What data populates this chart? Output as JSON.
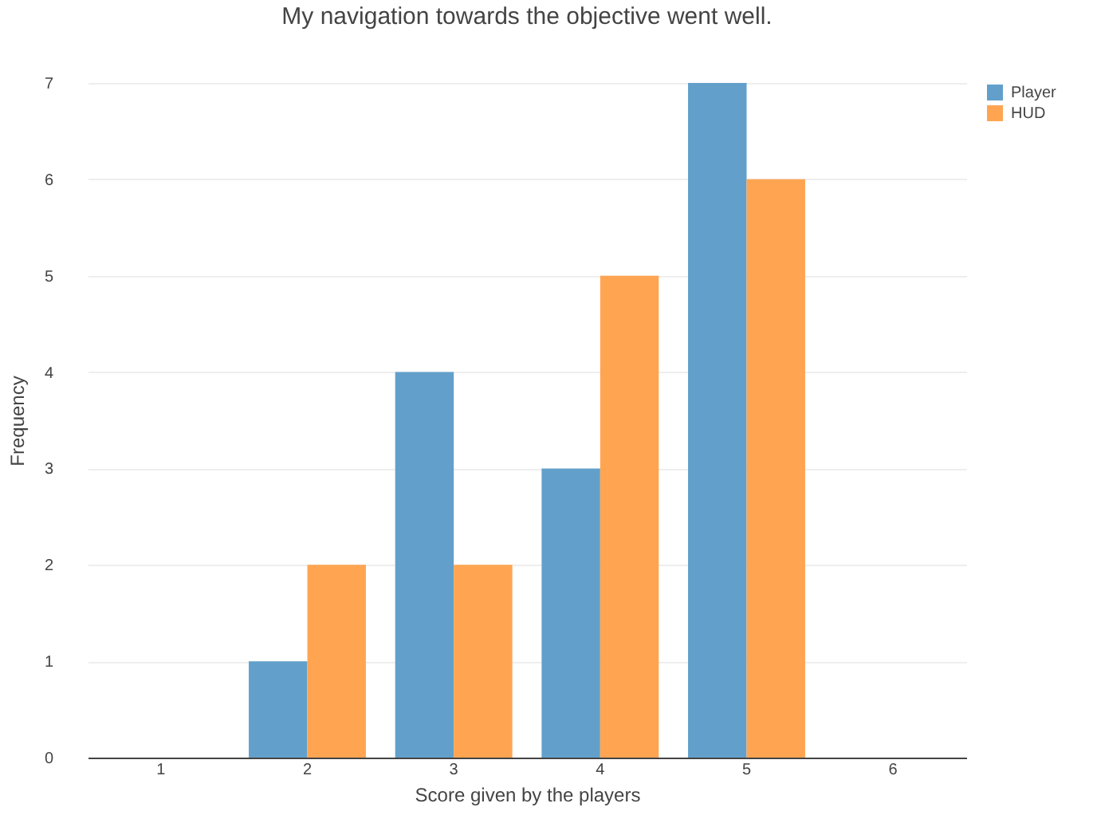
{
  "chart_data": {
    "type": "bar",
    "title": "My navigation towards the objective went well.",
    "xlabel": "Score given by the players",
    "ylabel": "Frequency",
    "categories": [
      "1",
      "2",
      "3",
      "4",
      "5",
      "6"
    ],
    "series": [
      {
        "name": "Player",
        "color": "#62a0cb",
        "values": [
          0,
          1,
          4,
          3,
          7,
          0
        ]
      },
      {
        "name": "HUD",
        "color": "#ffa552",
        "values": [
          0,
          2,
          2,
          5,
          6,
          0
        ]
      }
    ],
    "ylim": [
      0,
      7
    ],
    "yticks": [
      0,
      1,
      2,
      3,
      4,
      5,
      6,
      7
    ],
    "grid": "y",
    "legend": "top right"
  }
}
